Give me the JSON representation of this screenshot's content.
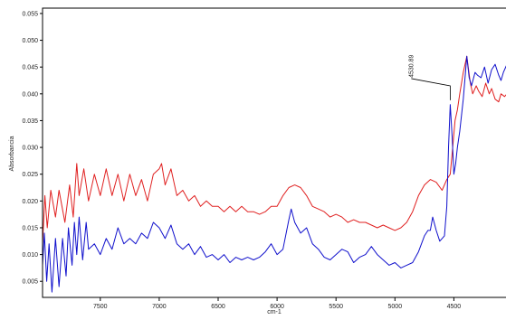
{
  "chart_data": {
    "type": "line",
    "title": "",
    "xlabel": "cm-1",
    "ylabel": "Absorbancia",
    "xlim": [
      7990,
      4050
    ],
    "ylim": [
      0.002,
      0.056
    ],
    "x_reversed": true,
    "grid": false,
    "legend": "none",
    "x_ticks": [
      7500,
      7000,
      6500,
      6000,
      5500,
      5000,
      4500
    ],
    "y_ticks": [
      0.005,
      0.01,
      0.015,
      0.02,
      0.025,
      0.03,
      0.035,
      0.04,
      0.045,
      0.05,
      0.055
    ],
    "y_tick_labels": [
      "0.005",
      "0.010",
      "0.015",
      "0.020",
      "0.025",
      "0.030",
      "0.035",
      "0.040",
      "0.045",
      "0.050",
      "0.055"
    ],
    "annotations": [
      {
        "text": "4530.89",
        "x": 4530.89,
        "y": 0.0415
      }
    ],
    "series": [
      {
        "color": "#e02020",
        "x": [
          7990,
          7970,
          7950,
          7920,
          7880,
          7850,
          7800,
          7760,
          7730,
          7700,
          7680,
          7640,
          7600,
          7550,
          7500,
          7450,
          7400,
          7350,
          7300,
          7250,
          7200,
          7150,
          7100,
          7050,
          7000,
          6980,
          6950,
          6900,
          6850,
          6800,
          6750,
          6700,
          6650,
          6600,
          6550,
          6500,
          6450,
          6400,
          6350,
          6300,
          6250,
          6200,
          6150,
          6100,
          6050,
          6000,
          5950,
          5900,
          5850,
          5800,
          5750,
          5700,
          5650,
          5600,
          5550,
          5500,
          5450,
          5400,
          5350,
          5300,
          5250,
          5200,
          5150,
          5100,
          5050,
          5000,
          4950,
          4900,
          4850,
          4800,
          4750,
          4700,
          4650,
          4600,
          4560,
          4531,
          4510,
          4490,
          4470,
          4450,
          4420,
          4390,
          4360,
          4340,
          4310,
          4290,
          4260,
          4230,
          4200,
          4180,
          4150,
          4120,
          4100,
          4070,
          4050
        ],
        "y": [
          0.012,
          0.021,
          0.015,
          0.022,
          0.017,
          0.022,
          0.016,
          0.023,
          0.017,
          0.027,
          0.021,
          0.026,
          0.02,
          0.025,
          0.021,
          0.026,
          0.021,
          0.025,
          0.02,
          0.025,
          0.021,
          0.024,
          0.02,
          0.025,
          0.026,
          0.027,
          0.023,
          0.026,
          0.021,
          0.022,
          0.02,
          0.021,
          0.019,
          0.02,
          0.019,
          0.019,
          0.018,
          0.019,
          0.018,
          0.019,
          0.018,
          0.018,
          0.0175,
          0.018,
          0.019,
          0.019,
          0.021,
          0.0225,
          0.023,
          0.0225,
          0.021,
          0.019,
          0.0185,
          0.018,
          0.017,
          0.0175,
          0.017,
          0.016,
          0.0165,
          0.016,
          0.016,
          0.0155,
          0.015,
          0.0155,
          0.015,
          0.0145,
          0.015,
          0.016,
          0.018,
          0.021,
          0.023,
          0.024,
          0.0235,
          0.022,
          0.024,
          0.025,
          0.03,
          0.035,
          0.037,
          0.04,
          0.044,
          0.047,
          0.042,
          0.04,
          0.0415,
          0.0405,
          0.0395,
          0.042,
          0.04,
          0.041,
          0.039,
          0.0385,
          0.04,
          0.0395,
          0.04
        ]
      },
      {
        "color": "#1010cc",
        "x": [
          7990,
          7975,
          7955,
          7935,
          7910,
          7880,
          7850,
          7820,
          7790,
          7770,
          7740,
          7720,
          7700,
          7680,
          7650,
          7620,
          7600,
          7550,
          7500,
          7450,
          7400,
          7350,
          7300,
          7250,
          7200,
          7150,
          7100,
          7050,
          7000,
          6950,
          6900,
          6850,
          6800,
          6750,
          6700,
          6650,
          6600,
          6550,
          6500,
          6450,
          6400,
          6350,
          6300,
          6250,
          6200,
          6150,
          6100,
          6050,
          6000,
          5950,
          5900,
          5880,
          5850,
          5800,
          5750,
          5700,
          5650,
          5600,
          5550,
          5500,
          5450,
          5400,
          5350,
          5300,
          5250,
          5200,
          5150,
          5100,
          5050,
          5000,
          4950,
          4900,
          4850,
          4800,
          4750,
          4720,
          4700,
          4680,
          4650,
          4620,
          4580,
          4560,
          4545,
          4531,
          4515,
          4500,
          4485,
          4470,
          4450,
          4420,
          4390,
          4370,
          4350,
          4320,
          4300,
          4270,
          4240,
          4210,
          4180,
          4150,
          4120,
          4100,
          4080,
          4050
        ],
        "y": [
          0.008,
          0.014,
          0.005,
          0.012,
          0.003,
          0.013,
          0.004,
          0.013,
          0.006,
          0.015,
          0.008,
          0.016,
          0.01,
          0.017,
          0.009,
          0.016,
          0.011,
          0.012,
          0.01,
          0.013,
          0.011,
          0.015,
          0.012,
          0.013,
          0.012,
          0.014,
          0.013,
          0.016,
          0.015,
          0.013,
          0.0155,
          0.012,
          0.011,
          0.012,
          0.01,
          0.0115,
          0.0095,
          0.01,
          0.009,
          0.01,
          0.0085,
          0.0095,
          0.009,
          0.0095,
          0.009,
          0.0095,
          0.0105,
          0.012,
          0.01,
          0.011,
          0.0165,
          0.0185,
          0.016,
          0.014,
          0.015,
          0.012,
          0.011,
          0.0095,
          0.009,
          0.01,
          0.011,
          0.0105,
          0.0085,
          0.0095,
          0.01,
          0.0115,
          0.01,
          0.009,
          0.008,
          0.0085,
          0.0075,
          0.008,
          0.0085,
          0.0105,
          0.0135,
          0.0145,
          0.0145,
          0.017,
          0.0145,
          0.0125,
          0.0135,
          0.019,
          0.03,
          0.038,
          0.032,
          0.025,
          0.027,
          0.03,
          0.033,
          0.039,
          0.047,
          0.043,
          0.0415,
          0.044,
          0.0435,
          0.043,
          0.045,
          0.042,
          0.0445,
          0.0455,
          0.0435,
          0.0425,
          0.044,
          0.0455
        ]
      }
    ]
  }
}
